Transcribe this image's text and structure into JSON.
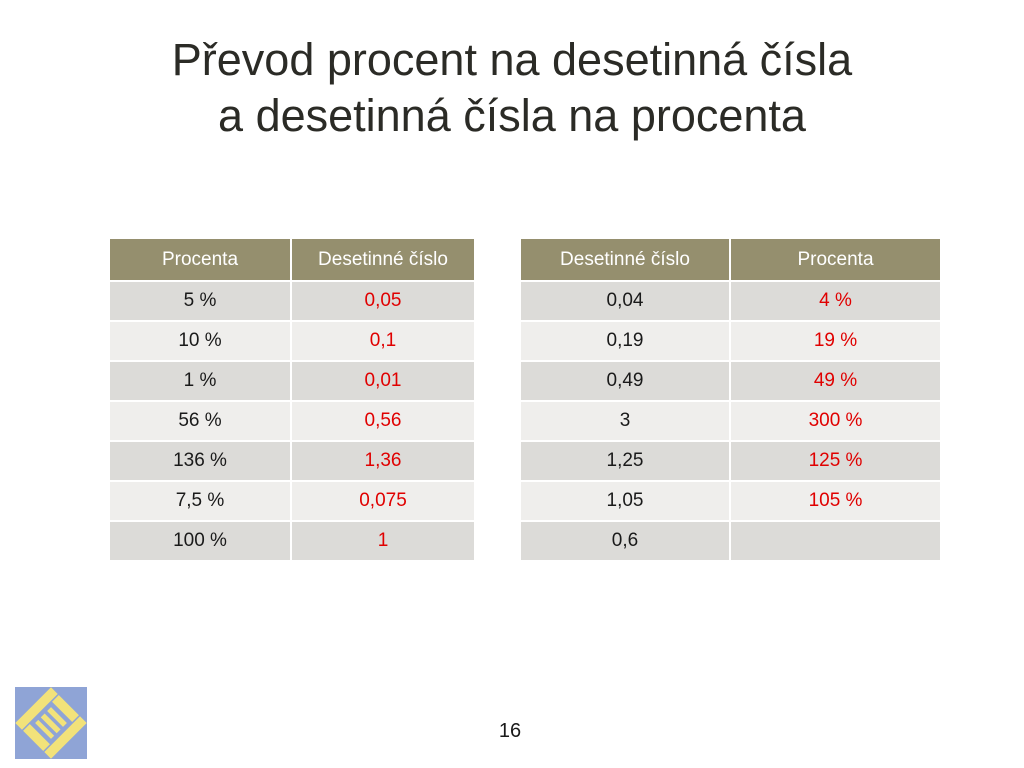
{
  "slide": {
    "title_line1": "Převod procent na desetinná čísla",
    "title_line2": "a desetinná čísla na procenta",
    "page_number": "16"
  },
  "colors": {
    "header_bg": "#958f6e",
    "row_dark": "#dcdbd8",
    "row_light": "#efeeec",
    "answer_text": "#e00000",
    "logo_bg": "#8fa4d6",
    "logo_shape": "#f2e27a"
  },
  "logo": {
    "icon": "woven-square-logo-icon"
  },
  "left_table": {
    "headers": [
      "Procenta",
      "Desetinné číslo"
    ],
    "rows": [
      [
        "5 %",
        "0,05"
      ],
      [
        "10 %",
        "0,1"
      ],
      [
        "1 %",
        "0,01"
      ],
      [
        "56 %",
        "0,56"
      ],
      [
        "136 %",
        "1,36"
      ],
      [
        "7,5 %",
        "0,075"
      ],
      [
        "100 %",
        "1"
      ]
    ]
  },
  "right_table": {
    "headers": [
      "Desetinné číslo",
      "Procenta"
    ],
    "rows": [
      [
        "0,04",
        "4 %"
      ],
      [
        "0,19",
        "19 %"
      ],
      [
        "0,49",
        "49 %"
      ],
      [
        "3",
        "300 %"
      ],
      [
        "1,25",
        "125 %"
      ],
      [
        "1,05",
        "105 %"
      ],
      [
        "0,6",
        ""
      ]
    ]
  }
}
